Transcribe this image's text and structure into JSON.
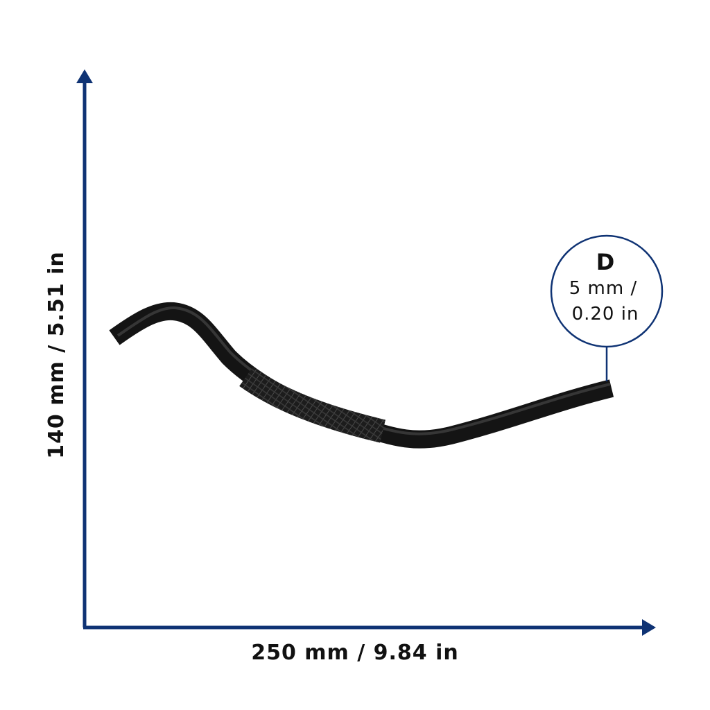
{
  "dimensions": {
    "width": "250 mm / 9.84 in",
    "height": "140 mm / 5.51 in",
    "diameter": {
      "label": "D",
      "line1": "5 mm /",
      "line2": "0.20 in"
    }
  }
}
